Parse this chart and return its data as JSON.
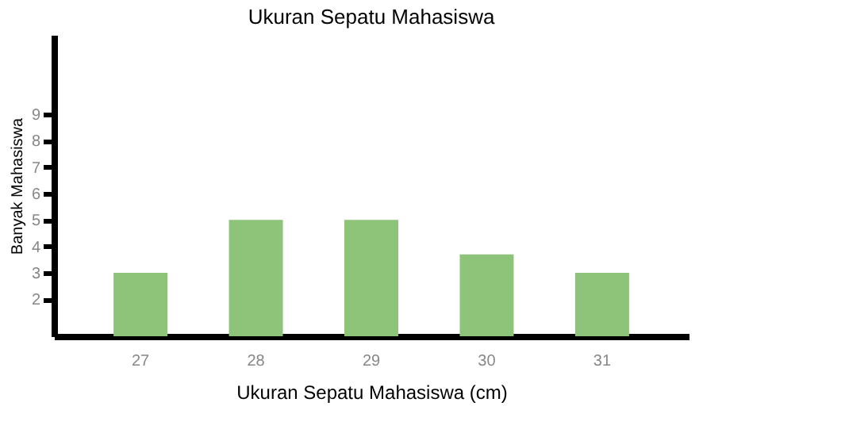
{
  "chart_data": {
    "type": "bar",
    "title": "Ukuran Sepatu Mahasiswa",
    "xlabel": "Ukuran Sepatu Mahasiswa (cm)",
    "ylabel": "Banyak Mahasiswa",
    "categories": [
      "27",
      "28",
      "29",
      "30",
      "31"
    ],
    "values": [
      3,
      5,
      5,
      3.7,
      3
    ],
    "color": "#8dc47a",
    "ylim": [
      0.6,
      12
    ],
    "yticks": [
      2,
      3,
      4,
      5,
      6,
      7,
      8,
      9
    ],
    "grid": false
  }
}
